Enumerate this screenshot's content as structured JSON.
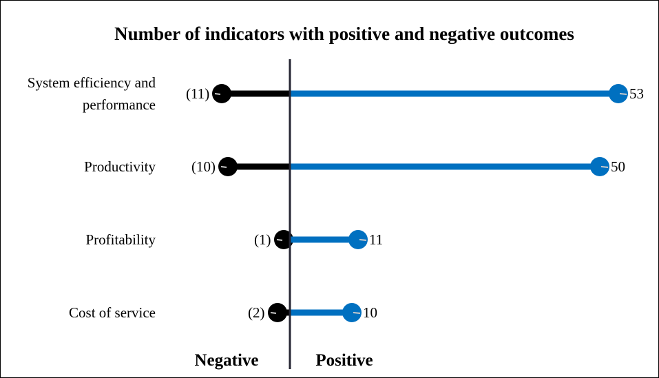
{
  "chart_data": {
    "type": "diverging-lollipop",
    "title": "Number of indicators with positive and negative outcomes",
    "categories": [
      "System efficiency and performance",
      "Productivity",
      "Profitability",
      "Cost of service"
    ],
    "series": [
      {
        "name": "Negative",
        "color": "#000000",
        "values": [
          -11,
          -10,
          -1,
          -2
        ],
        "value_labels": [
          "(11)",
          "(10)",
          "(1)",
          "(2)"
        ]
      },
      {
        "name": "Positive",
        "color": "#0070c0",
        "values": [
          53,
          50,
          11,
          10
        ]
      }
    ],
    "xlim": [
      -20,
      58
    ]
  }
}
